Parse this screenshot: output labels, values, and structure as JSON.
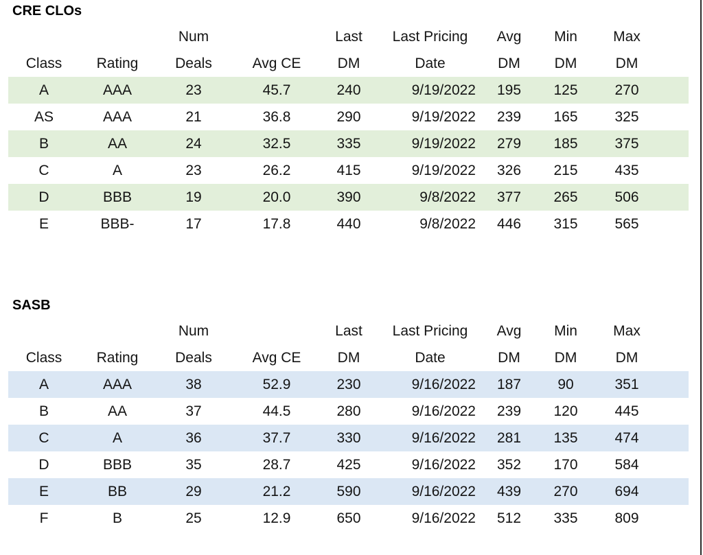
{
  "page": {
    "background_color": "#ffffff",
    "right_border_color": "#2b2b2b"
  },
  "tables": [
    {
      "title": "CRE CLOs",
      "stripe_color": "#e2efda",
      "columns": [
        {
          "line1": "",
          "line2": "Class"
        },
        {
          "line1": "",
          "line2": "Rating"
        },
        {
          "line1": "Num",
          "line2": "Deals"
        },
        {
          "line1": "",
          "line2": "Avg CE"
        },
        {
          "line1": "Last",
          "line2": "DM"
        },
        {
          "line1": "Last Pricing",
          "line2": "Date"
        },
        {
          "line1": "Avg",
          "line2": "DM"
        },
        {
          "line1": "Min",
          "line2": "DM"
        },
        {
          "line1": "Max",
          "line2": "DM"
        }
      ],
      "rows": [
        [
          "A",
          "AAA",
          "23",
          "45.7",
          "240",
          "9/19/2022",
          "195",
          "125",
          "270"
        ],
        [
          "AS",
          "AAA",
          "21",
          "36.8",
          "290",
          "9/19/2022",
          "239",
          "165",
          "325"
        ],
        [
          "B",
          "AA",
          "24",
          "32.5",
          "335",
          "9/19/2022",
          "279",
          "185",
          "375"
        ],
        [
          "C",
          "A",
          "23",
          "26.2",
          "415",
          "9/19/2022",
          "326",
          "215",
          "435"
        ],
        [
          "D",
          "BBB",
          "19",
          "20.0",
          "390",
          "9/8/2022",
          "377",
          "265",
          "506"
        ],
        [
          "E",
          "BBB-",
          "17",
          "17.8",
          "440",
          "9/8/2022",
          "446",
          "315",
          "565"
        ]
      ]
    },
    {
      "title": "SASB",
      "stripe_color": "#dbe7f4",
      "columns": [
        {
          "line1": "",
          "line2": "Class"
        },
        {
          "line1": "",
          "line2": "Rating"
        },
        {
          "line1": "Num",
          "line2": "Deals"
        },
        {
          "line1": "",
          "line2": "Avg CE"
        },
        {
          "line1": "Last",
          "line2": "DM"
        },
        {
          "line1": "Last Pricing",
          "line2": "Date"
        },
        {
          "line1": "Avg",
          "line2": "DM"
        },
        {
          "line1": "Min",
          "line2": "DM"
        },
        {
          "line1": "Max",
          "line2": "DM"
        }
      ],
      "rows": [
        [
          "A",
          "AAA",
          "38",
          "52.9",
          "230",
          "9/16/2022",
          "187",
          "90",
          "351"
        ],
        [
          "B",
          "AA",
          "37",
          "44.5",
          "280",
          "9/16/2022",
          "239",
          "120",
          "445"
        ],
        [
          "C",
          "A",
          "36",
          "37.7",
          "330",
          "9/16/2022",
          "281",
          "135",
          "474"
        ],
        [
          "D",
          "BBB",
          "35",
          "28.7",
          "425",
          "9/16/2022",
          "352",
          "170",
          "584"
        ],
        [
          "E",
          "BB",
          "29",
          "21.2",
          "590",
          "9/16/2022",
          "439",
          "270",
          "694"
        ],
        [
          "F",
          "B",
          "25",
          "12.9",
          "650",
          "9/16/2022",
          "512",
          "335",
          "809"
        ]
      ]
    }
  ]
}
